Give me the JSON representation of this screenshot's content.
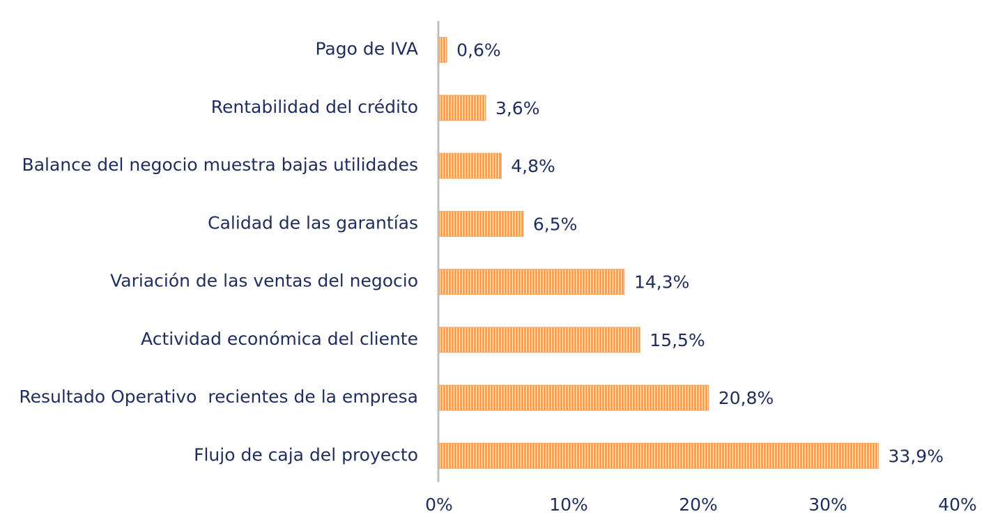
{
  "chart_data": {
    "type": "bar",
    "orientation": "horizontal",
    "categories": [
      "Pago de IVA",
      "Rentabilidad del crédito",
      "Balance del negocio muestra bajas utilidades",
      "Calidad de las garantías",
      "Variación de las ventas del negocio",
      "Actividad económica del cliente",
      "Resultado Operativo  recientes de la empresa",
      "Flujo de caja del proyecto"
    ],
    "values": [
      0.6,
      3.6,
      4.8,
      6.5,
      14.3,
      15.5,
      20.8,
      33.9
    ],
    "value_labels": [
      "0,6%",
      "3,6%",
      "4,8%",
      "6,5%",
      "14,3%",
      "15,5%",
      "20,8%",
      "33,9%"
    ],
    "color": "#f2a05e",
    "xlim": [
      0,
      40
    ],
    "xticks": [
      {
        "value": 0,
        "label": "0%"
      },
      {
        "value": 10,
        "label": "10%"
      },
      {
        "value": 20,
        "label": "20%"
      },
      {
        "value": 30,
        "label": "30%"
      },
      {
        "value": 40,
        "label": "40%"
      }
    ]
  }
}
